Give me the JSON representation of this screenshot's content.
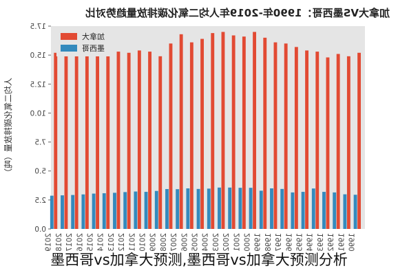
{
  "chart_data": {
    "type": "bar",
    "title": "加拿大VS墨西哥：1990年-2019年人均二氧化碳排放量趋势对比",
    "ylabel": "人均二氧化碳排放量（吨）",
    "ylim": [
      0,
      17.5
    ],
    "yticks": [
      0,
      2.5,
      5.0,
      7.5,
      10.0,
      12.5,
      15.0,
      17.5
    ],
    "categories": [
      "1990",
      "1991",
      "1992",
      "1993",
      "1994",
      "1995",
      "1996",
      "1997",
      "1998",
      "1999",
      "2000",
      "2001",
      "2002",
      "2003",
      "2004",
      "2005",
      "2006",
      "2007",
      "2008",
      "2009",
      "2010",
      "2011",
      "2012",
      "2013",
      "2014",
      "2015",
      "2016",
      "2017",
      "2018",
      "2019"
    ],
    "series": [
      {
        "name": "加拿大",
        "color": "#e24a33",
        "values": [
          15.2,
          14.9,
          15.1,
          14.8,
          15.3,
          15.4,
          15.7,
          16.0,
          16.1,
          16.5,
          17.0,
          16.6,
          16.7,
          17.0,
          16.9,
          16.4,
          16.1,
          16.8,
          16.0,
          14.9,
          15.3,
          15.4,
          15.2,
          15.3,
          15.3,
          15.1,
          14.9,
          15.0,
          15.1,
          15.2
        ]
      },
      {
        "name": "墨西哥",
        "color": "#348abd",
        "values": [
          2.95,
          2.99,
          3.15,
          3.2,
          3.49,
          3.2,
          3.15,
          3.45,
          3.5,
          3.3,
          3.55,
          3.55,
          3.57,
          3.57,
          3.48,
          3.45,
          3.5,
          3.43,
          3.44,
          3.28,
          3.2,
          3.23,
          3.18,
          3.12,
          3.08,
          3.05,
          2.98,
          2.93,
          2.9,
          2.87
        ]
      }
    ],
    "legend": "top-right",
    "grid": false
  },
  "caption": "墨西哥vs加拿大预测,墨西哥vs加拿大预测分析"
}
